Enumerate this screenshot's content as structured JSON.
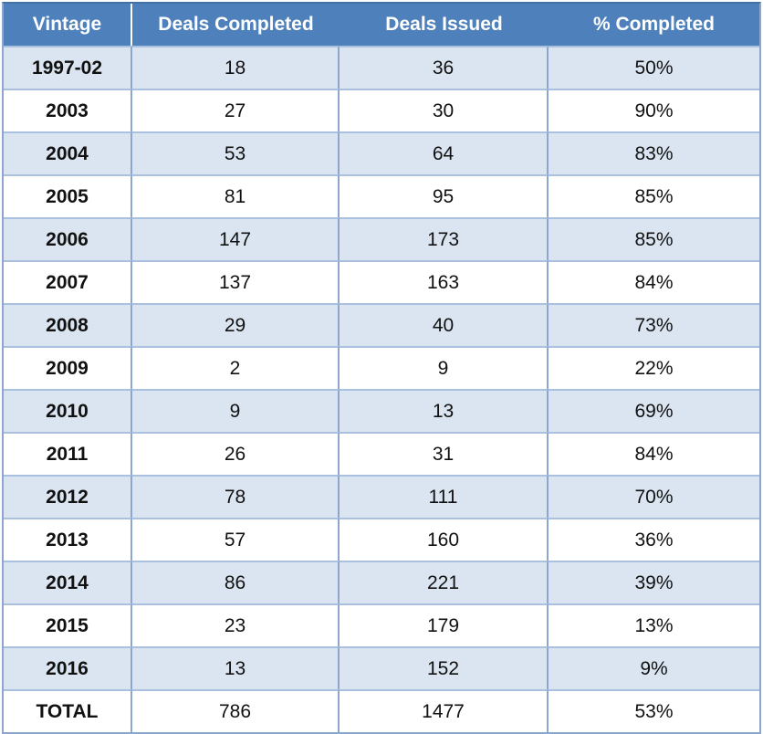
{
  "chart_data": {
    "type": "table",
    "title": "",
    "columns": [
      "Vintage",
      "Deals Completed",
      "Deals Issued",
      "% Completed"
    ],
    "rows": [
      [
        "1997-02",
        18,
        36,
        "50%"
      ],
      [
        "2003",
        27,
        30,
        "90%"
      ],
      [
        "2004",
        53,
        64,
        "83%"
      ],
      [
        "2005",
        81,
        95,
        "85%"
      ],
      [
        "2006",
        147,
        173,
        "85%"
      ],
      [
        "2007",
        137,
        163,
        "84%"
      ],
      [
        "2008",
        29,
        40,
        "73%"
      ],
      [
        "2009",
        2,
        9,
        "22%"
      ],
      [
        "2010",
        9,
        13,
        "69%"
      ],
      [
        "2011",
        26,
        31,
        "84%"
      ],
      [
        "2012",
        78,
        111,
        "70%"
      ],
      [
        "2013",
        57,
        160,
        "36%"
      ],
      [
        "2014",
        86,
        221,
        "39%"
      ],
      [
        "2015",
        23,
        179,
        "13%"
      ],
      [
        "2016",
        13,
        152,
        "9%"
      ],
      [
        "TOTAL",
        786,
        1477,
        "53%"
      ]
    ],
    "total_row_label": "TOTAL",
    "layout_hints": {
      "header_position": "top",
      "zebra_striping": true,
      "first_column_bold": true
    }
  },
  "colors": {
    "header_bg": "#4E80BC",
    "header_top_edge": "#4372A4",
    "header_text": "#FFFFFF",
    "row_bg": "#FFFFFF",
    "row_alt_bg": "#DBE5F1",
    "border_vertical": "#8CA6CD",
    "border_horizontal": "#A9C0DE",
    "text": "#111111"
  }
}
